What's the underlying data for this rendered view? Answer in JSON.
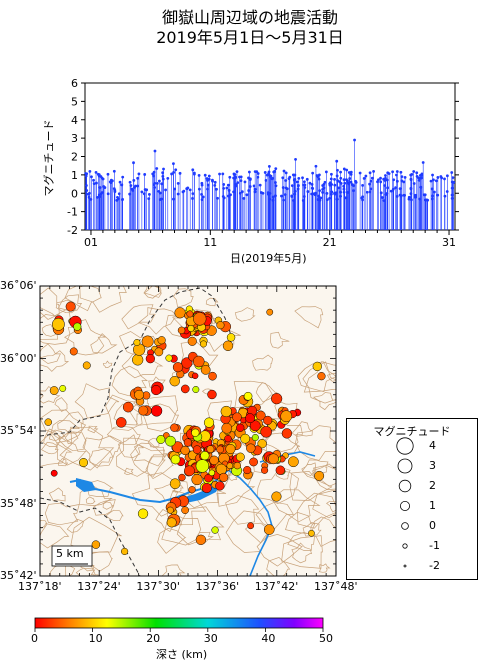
{
  "title_line1": "御嶽山周辺域の地震活動",
  "title_line2": "2019年5月1日～5月31日",
  "plot": {
    "ylabel": "マグニチュード",
    "xlabel": "日(2019年5月)",
    "yticks": [
      "6",
      "5",
      "4",
      "3",
      "2",
      "1",
      "0",
      "-1",
      "-2"
    ],
    "xticks": [
      "01",
      "11",
      "21",
      "31"
    ]
  },
  "map": {
    "lat_ticks": [
      "36˚06'",
      "36˚00'",
      "35˚54'",
      "35˚48'",
      "35˚42'"
    ],
    "lon_ticks": [
      "137˚18'",
      "137˚24'",
      "137˚30'",
      "137˚36'",
      "137˚42'",
      "137˚48'"
    ],
    "scale_label": "5 km"
  },
  "legend": {
    "title": "マグニチュード",
    "items": [
      "4",
      "3",
      "2",
      "1",
      "0",
      "-1",
      "-2"
    ]
  },
  "colorbar": {
    "label": "深さ (km)",
    "ticks": [
      "0",
      "10",
      "20",
      "30",
      "40",
      "50"
    ]
  },
  "colors": {
    "stem": "#1f3bff",
    "river": "#1e88e5",
    "contour": "#c8a27a"
  },
  "chart_data": {
    "type": "scatter",
    "x_range_days": [
      0.5,
      31.5
    ],
    "y_range": [
      -2,
      6
    ],
    "note_series": "magnitude vs day (stem plot)"
  }
}
